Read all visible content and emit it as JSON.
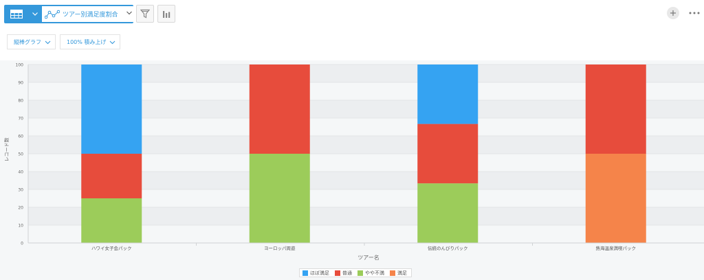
{
  "toolbar": {
    "view_name": "ツアー別満足度割合",
    "icons": {
      "table": "table-icon",
      "caret": "chevron-down-icon",
      "graph": "line-graph-icon",
      "filter": "filter-icon",
      "chart": "bar-chart-icon",
      "plus": "plus-icon",
      "more": "more-icon"
    },
    "accent_color": "#3498db"
  },
  "settings": {
    "chart_type": "縦棒グラフ",
    "stack_mode": "100% 積み上げ"
  },
  "chart_data": {
    "type": "bar",
    "stacked": "percent",
    "categories": [
      "ハワイ女子会パック",
      "ヨーロッパ周遊",
      "伝統のんびりパック",
      "熱海温泉満喫パック"
    ],
    "series": [
      {
        "name": "ほぼ満足",
        "color": "#35a3f2",
        "values": [
          50,
          0,
          33.3,
          0
        ]
      },
      {
        "name": "普通",
        "color": "#e74c3c",
        "values": [
          25,
          50,
          33.3,
          50
        ]
      },
      {
        "name": "やや不満",
        "color": "#9ccc5a",
        "values": [
          25,
          50,
          33.4,
          0
        ]
      },
      {
        "name": "満足",
        "color": "#f5844a",
        "values": [
          0,
          0,
          0,
          50
        ]
      }
    ],
    "stack_order": [
      "やや不満",
      "満足",
      "普通",
      "ほぼ満足"
    ],
    "xlabel": "ツアー名",
    "ylabel": "レコード数",
    "ylim": [
      0,
      100
    ],
    "yticks": [
      "0",
      "10",
      "20",
      "30",
      "40",
      "50",
      "60",
      "70",
      "80",
      "90",
      "100"
    ],
    "grid": true,
    "legend": "bottom"
  }
}
